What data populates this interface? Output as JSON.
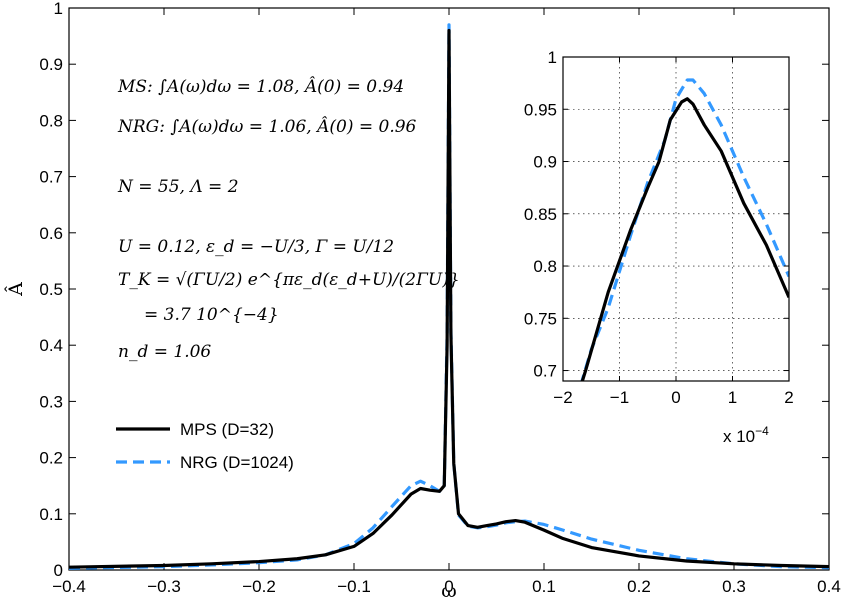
{
  "chart_data": [
    {
      "type": "line",
      "xlabel": "ω",
      "ylabel": "Â",
      "xlim": [
        -0.4,
        0.4
      ],
      "ylim": [
        0,
        1
      ],
      "xticks": [
        "−0.4",
        "−0.3",
        "−0.2",
        "−0.1",
        "0",
        "0.1",
        "0.2",
        "0.3",
        "0.4"
      ],
      "yticks": [
        "0",
        "0.1",
        "0.2",
        "0.3",
        "0.4",
        "0.5",
        "0.6",
        "0.7",
        "0.8",
        "0.9",
        "1"
      ],
      "grid": false,
      "legend": "bottom-left",
      "series": [
        {
          "name": "MPS (D=32)",
          "color": "#000000",
          "style": "solid",
          "x": [
            -0.4,
            -0.3,
            -0.25,
            -0.2,
            -0.16,
            -0.13,
            -0.1,
            -0.08,
            -0.06,
            -0.04,
            -0.03,
            -0.02,
            -0.01,
            -0.005,
            -0.002,
            0,
            0.002,
            0.005,
            0.01,
            0.02,
            0.03,
            0.04,
            0.05,
            0.06,
            0.07,
            0.08,
            0.1,
            0.12,
            0.15,
            0.2,
            0.25,
            0.3,
            0.35,
            0.4
          ],
          "y": [
            0.005,
            0.008,
            0.011,
            0.015,
            0.02,
            0.027,
            0.042,
            0.065,
            0.098,
            0.135,
            0.145,
            0.142,
            0.14,
            0.15,
            0.4,
            0.96,
            0.42,
            0.19,
            0.1,
            0.079,
            0.076,
            0.079,
            0.082,
            0.086,
            0.088,
            0.085,
            0.071,
            0.056,
            0.04,
            0.025,
            0.016,
            0.011,
            0.008,
            0.006
          ]
        },
        {
          "name": "NRG (D=1024)",
          "color": "#3399ff",
          "style": "dashed",
          "x": [
            -0.4,
            -0.3,
            -0.25,
            -0.2,
            -0.16,
            -0.13,
            -0.1,
            -0.08,
            -0.06,
            -0.04,
            -0.03,
            -0.02,
            -0.01,
            -0.005,
            -0.002,
            0,
            0.002,
            0.005,
            0.01,
            0.02,
            0.03,
            0.04,
            0.05,
            0.06,
            0.07,
            0.08,
            0.1,
            0.12,
            0.15,
            0.2,
            0.25,
            0.3,
            0.35,
            0.4
          ],
          "y": [
            0.003,
            0.006,
            0.009,
            0.013,
            0.018,
            0.027,
            0.047,
            0.075,
            0.113,
            0.15,
            0.158,
            0.15,
            0.14,
            0.15,
            0.42,
            0.97,
            0.43,
            0.19,
            0.098,
            0.078,
            0.075,
            0.077,
            0.08,
            0.084,
            0.086,
            0.087,
            0.081,
            0.071,
            0.055,
            0.035,
            0.02,
            0.011,
            0.006,
            0.004
          ]
        }
      ],
      "annotations": [
        "MS:  ∫A(ω)dω = 1.08,  Â(0) = 0.94",
        "NRG: ∫A(ω)dω = 1.06,  Â(0) = 0.96",
        "N = 55,  Λ = 2",
        "U = 0.12,  ε_d = −U/3,  Γ = U/12",
        "T_K = √(ΓU/2) e^{πε_d(ε_d+U)/(2ΓU)}",
        "= 3.7 10^{−4}",
        "n_d = 1.06"
      ]
    },
    {
      "type": "line",
      "xlim": [
        -2,
        2
      ],
      "ylim": [
        0.69,
        1
      ],
      "xticks": [
        "−2",
        "−1",
        "0",
        "1",
        "2"
      ],
      "yticks": [
        "0.7",
        "0.75",
        "0.8",
        "0.85",
        "0.9",
        "0.95",
        "1"
      ],
      "x_multiplier": "x 10",
      "x_multiplier_exp": "−4",
      "grid": true,
      "series": [
        {
          "name": "MPS (D=32)",
          "color": "#000000",
          "style": "solid",
          "x": [
            -2,
            -1.6,
            -1.2,
            -0.8,
            -0.5,
            -0.3,
            -0.1,
            0.1,
            0.2,
            0.3,
            0.5,
            0.8,
            1.2,
            1.6,
            2.0
          ],
          "y": [
            0.63,
            0.7,
            0.775,
            0.835,
            0.875,
            0.9,
            0.94,
            0.957,
            0.96,
            0.955,
            0.935,
            0.91,
            0.86,
            0.82,
            0.77
          ]
        },
        {
          "name": "NRG (D=1024)",
          "color": "#3399ff",
          "style": "dashed",
          "x": [
            -2,
            -1.8,
            -1.5,
            -1.2,
            -0.8,
            -0.5,
            -0.2,
            0,
            0.2,
            0.3,
            0.5,
            0.8,
            1.2,
            1.6,
            2.0
          ],
          "y": [
            0.64,
            0.665,
            0.72,
            0.76,
            0.83,
            0.88,
            0.92,
            0.96,
            0.978,
            0.978,
            0.965,
            0.935,
            0.885,
            0.84,
            0.79
          ]
        }
      ]
    }
  ]
}
